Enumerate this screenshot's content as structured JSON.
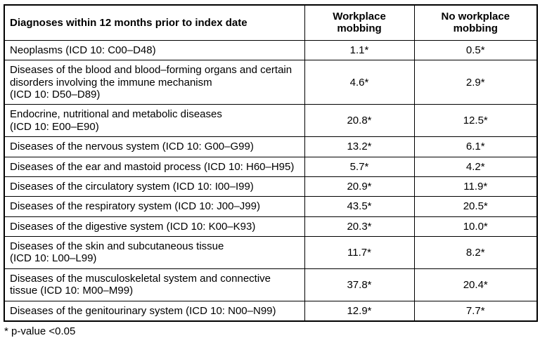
{
  "table": {
    "header": {
      "diagnosis_col": "Diagnoses within 12 months prior to index date",
      "workplace_col": "Workplace\nmobbing",
      "no_workplace_col": "No workplace\nmobbing"
    },
    "rows": [
      {
        "label": "Neoplasms (ICD 10: C00–D48)",
        "workplace_mobbing": "1.1*",
        "no_workplace_mobbing": "0.5*"
      },
      {
        "label": "Diseases of the blood and blood–forming organs and certain\ndisorders involving the immune mechanism\n(ICD 10: D50–D89)",
        "workplace_mobbing": "4.6*",
        "no_workplace_mobbing": "2.9*"
      },
      {
        "label": "Endocrine, nutritional and metabolic diseases\n(ICD 10: E00–E90)",
        "workplace_mobbing": "20.8*",
        "no_workplace_mobbing": "12.5*"
      },
      {
        "label": "Diseases of the nervous system (ICD 10: G00–G99)",
        "workplace_mobbing": "13.2*",
        "no_workplace_mobbing": "6.1*"
      },
      {
        "label": "Diseases of the ear and mastoid process (ICD 10: H60–H95)",
        "workplace_mobbing": "5.7*",
        "no_workplace_mobbing": "4.2*"
      },
      {
        "label": "Diseases of the circulatory system (ICD 10: I00–I99)",
        "workplace_mobbing": "20.9*",
        "no_workplace_mobbing": "11.9*"
      },
      {
        "label": "Diseases of the respiratory system (ICD 10: J00–J99)",
        "workplace_mobbing": "43.5*",
        "no_workplace_mobbing": "20.5*"
      },
      {
        "label": "Diseases of the digestive system (ICD 10: K00–K93)",
        "workplace_mobbing": "20.3*",
        "no_workplace_mobbing": "10.0*"
      },
      {
        "label": "Diseases of the skin and subcutaneous tissue\n(ICD 10: L00–L99)",
        "workplace_mobbing": "11.7*",
        "no_workplace_mobbing": "8.2*"
      },
      {
        "label": "Diseases of the musculoskeletal system and connective\ntissue (ICD 10: M00–M99)",
        "workplace_mobbing": "37.8*",
        "no_workplace_mobbing": "20.4*"
      },
      {
        "label": "Diseases of the genitourinary system (ICD 10: N00–N99)",
        "workplace_mobbing": "12.9*",
        "no_workplace_mobbing": "7.7*"
      }
    ],
    "footnote": "* p-value <0.05"
  },
  "colors": {
    "border": "#000000",
    "text": "#000000",
    "background": "#ffffff"
  }
}
